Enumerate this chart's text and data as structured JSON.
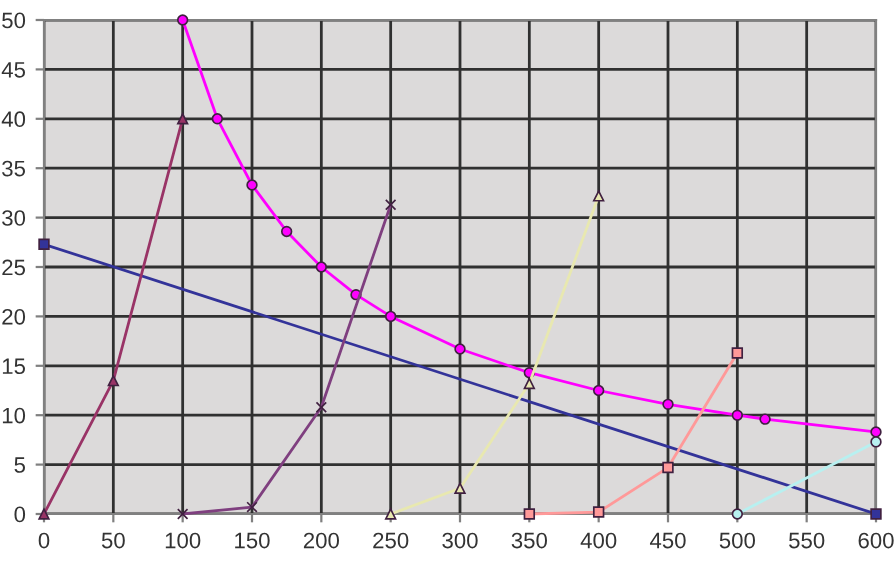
{
  "chart_data": {
    "type": "line",
    "xlim": [
      0,
      600
    ],
    "ylim": [
      0,
      50
    ],
    "xticks": [
      0,
      50,
      100,
      150,
      200,
      250,
      300,
      350,
      400,
      450,
      500,
      550,
      600
    ],
    "yticks": [
      0,
      5,
      10,
      15,
      20,
      25,
      30,
      35,
      40,
      45,
      50
    ],
    "grid": true,
    "series": [
      {
        "color": "#333399",
        "marker": "square",
        "x": [
          0,
          600
        ],
        "values": [
          27.3,
          0
        ]
      },
      {
        "color": "#ff00ff",
        "marker": "circle",
        "x": [
          100,
          125,
          150,
          175,
          200,
          225,
          250,
          300,
          350,
          400,
          450,
          500,
          520,
          600
        ],
        "values": [
          50,
          40,
          33.3,
          28.6,
          25,
          22.2,
          20,
          16.7,
          14.3,
          12.5,
          11.1,
          10,
          9.6,
          8.3
        ]
      },
      {
        "color": "#993366",
        "marker": "triangle",
        "x": [
          0,
          50,
          100
        ],
        "values": [
          0,
          13.5,
          40
        ]
      },
      {
        "color": "#7f3f7f",
        "marker": "cross",
        "x": [
          100,
          150,
          200,
          250
        ],
        "values": [
          0,
          0.7,
          10.8,
          31.3
        ]
      },
      {
        "color": "#e8e8b0",
        "marker": "triangle",
        "x": [
          250,
          300,
          350,
          400
        ],
        "values": [
          0,
          2.6,
          13.2,
          32.2
        ]
      },
      {
        "color": "#ff9999",
        "marker": "square",
        "x": [
          350,
          400,
          450,
          500
        ],
        "values": [
          0,
          0.2,
          4.7,
          16.3
        ]
      },
      {
        "color": "#b8f0f0",
        "marker": "circle",
        "x": [
          500,
          600
        ],
        "values": [
          0,
          7.3
        ]
      }
    ]
  }
}
